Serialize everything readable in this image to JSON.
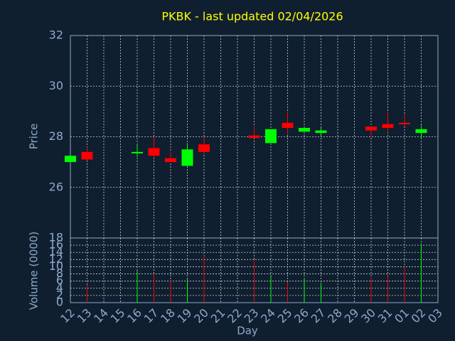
{
  "chart_data": {
    "type": "candlestick",
    "title": "PKBK - last updated 02/04/2026",
    "x_label": "Day",
    "y_label": "Price",
    "volume_label": "Volume (0000)",
    "categories": [
      "12",
      "13",
      "14",
      "15",
      "16",
      "17",
      "18",
      "19",
      "20",
      "21",
      "22",
      "23",
      "24",
      "25",
      "26",
      "27",
      "28",
      "29",
      "30",
      "31",
      "01",
      "02",
      "03"
    ],
    "open": [
      27.0,
      27.4,
      null,
      null,
      27.35,
      27.55,
      27.15,
      26.85,
      27.7,
      null,
      null,
      28.05,
      27.75,
      28.55,
      28.2,
      28.15,
      null,
      null,
      28.4,
      28.5,
      28.55,
      28.15,
      null
    ],
    "high": [
      27.25,
      27.6,
      null,
      null,
      27.7,
      28.0,
      27.4,
      27.75,
      28.0,
      null,
      null,
      28.4,
      28.3,
      29.0,
      28.35,
      28.35,
      null,
      null,
      28.4,
      29.0,
      28.9,
      28.45,
      null
    ],
    "low": [
      27.0,
      27.05,
      null,
      null,
      27.2,
      27.2,
      27.0,
      26.85,
      27.3,
      null,
      null,
      27.95,
      27.75,
      28.1,
      28.2,
      28.05,
      null,
      null,
      28.0,
      28.15,
      28.4,
      27.95,
      null
    ],
    "close": [
      27.25,
      27.1,
      null,
      null,
      27.4,
      27.25,
      27.0,
      27.5,
      27.4,
      null,
      null,
      27.95,
      28.3,
      28.35,
      28.35,
      28.25,
      null,
      null,
      28.25,
      28.35,
      28.5,
      28.3,
      null
    ],
    "volume": [
      null,
      5,
      null,
      null,
      9,
      8,
      6.3,
      6.7,
      13,
      null,
      null,
      12,
      7.5,
      5.7,
      6.7,
      5.5,
      null,
      null,
      7,
      7.5,
      10,
      16.5,
      null
    ],
    "up_color": "#00ff00",
    "down_color": "#ff0000",
    "ylim": [
      24,
      32
    ],
    "yticks": [
      26,
      28,
      30,
      32
    ],
    "volume_ylim": [
      0,
      18
    ],
    "volume_yticks": [
      0,
      2,
      4,
      6,
      8,
      10,
      12,
      14,
      16,
      18
    ],
    "grid": true
  }
}
